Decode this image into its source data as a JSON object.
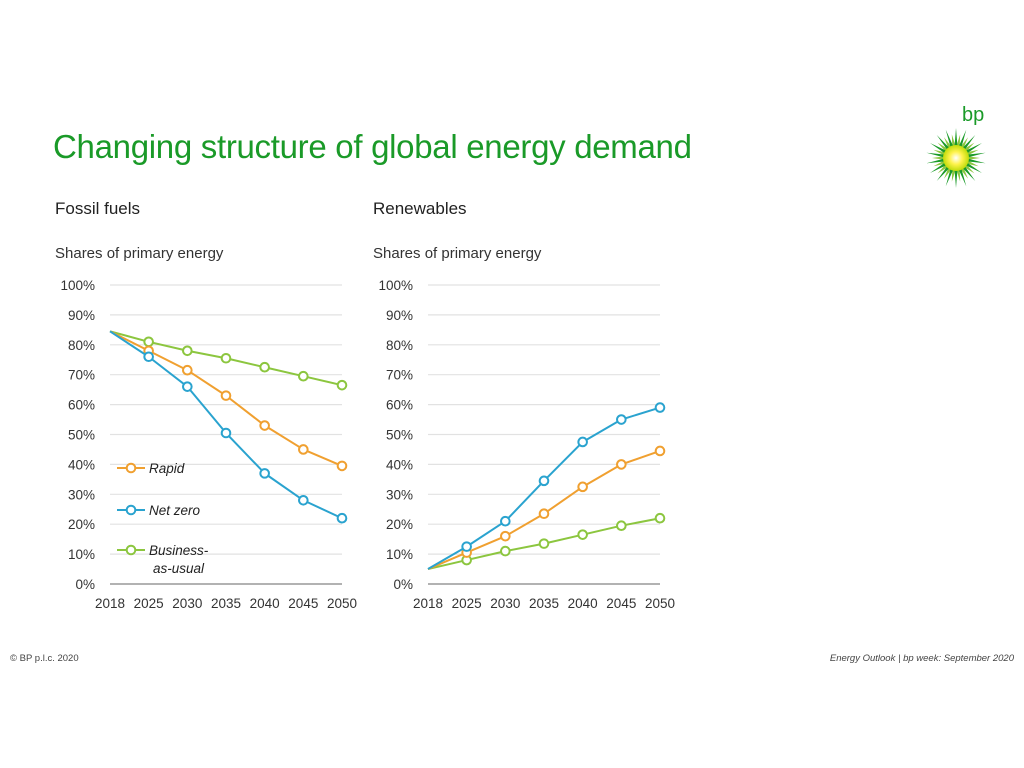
{
  "header": {
    "title": "Changing structure of global energy demand",
    "logo_text": "bp"
  },
  "footer": {
    "copyright": "© BP p.l.c. 2020",
    "source": "Energy Outlook  |  bp week: September 2020"
  },
  "colors": {
    "title_green": "#1a9a28",
    "rapid": "#f0a030",
    "net_zero": "#2aa3cf",
    "business_as_usual": "#8cc63f",
    "grid": "#e2e2e2",
    "axis": "#999999"
  },
  "legend": [
    {
      "key": "rapid",
      "label_lines": [
        "Rapid"
      ]
    },
    {
      "key": "net_zero",
      "label_lines": [
        "Net zero"
      ]
    },
    {
      "key": "business_as_usual",
      "label_lines": [
        "Business-",
        "as-usual"
      ]
    }
  ],
  "chart_data": [
    {
      "type": "line",
      "title": "Fossil fuels",
      "ylabel": "Shares of primary energy",
      "xlabel": "",
      "categories": [
        "2018",
        "2025",
        "2030",
        "2035",
        "2040",
        "2045",
        "2050"
      ],
      "yticks": [
        "0%",
        "10%",
        "20%",
        "30%",
        "40%",
        "50%",
        "60%",
        "70%",
        "80%",
        "90%",
        "100%"
      ],
      "ylim": [
        0,
        100
      ],
      "grid": true,
      "legend_position": "bottom-left",
      "series": [
        {
          "key": "business_as_usual",
          "name": "Business-as-usual",
          "values": [
            84.5,
            81,
            78,
            75.5,
            72.5,
            69.5,
            66.5
          ]
        },
        {
          "key": "rapid",
          "name": "Rapid",
          "values": [
            84.5,
            78,
            71.5,
            63,
            53,
            45,
            39.5
          ]
        },
        {
          "key": "net_zero",
          "name": "Net zero",
          "values": [
            84.5,
            76,
            66,
            50.5,
            37,
            28,
            22
          ]
        }
      ]
    },
    {
      "type": "line",
      "title": "Renewables",
      "ylabel": "Shares of primary energy",
      "xlabel": "",
      "categories": [
        "2018",
        "2025",
        "2030",
        "2035",
        "2040",
        "2045",
        "2050"
      ],
      "yticks": [
        "0%",
        "10%",
        "20%",
        "30%",
        "40%",
        "50%",
        "60%",
        "70%",
        "80%",
        "90%",
        "100%"
      ],
      "ylim": [
        0,
        100
      ],
      "grid": true,
      "series": [
        {
          "key": "business_as_usual",
          "name": "Business-as-usual",
          "values": [
            5,
            8,
            11,
            13.5,
            16.5,
            19.5,
            22
          ]
        },
        {
          "key": "rapid",
          "name": "Rapid",
          "values": [
            5,
            10.5,
            16,
            23.5,
            32.5,
            40,
            44.5
          ]
        },
        {
          "key": "net_zero",
          "name": "Net zero",
          "values": [
            5,
            12.5,
            21,
            34.5,
            47.5,
            55,
            59
          ]
        }
      ]
    }
  ]
}
